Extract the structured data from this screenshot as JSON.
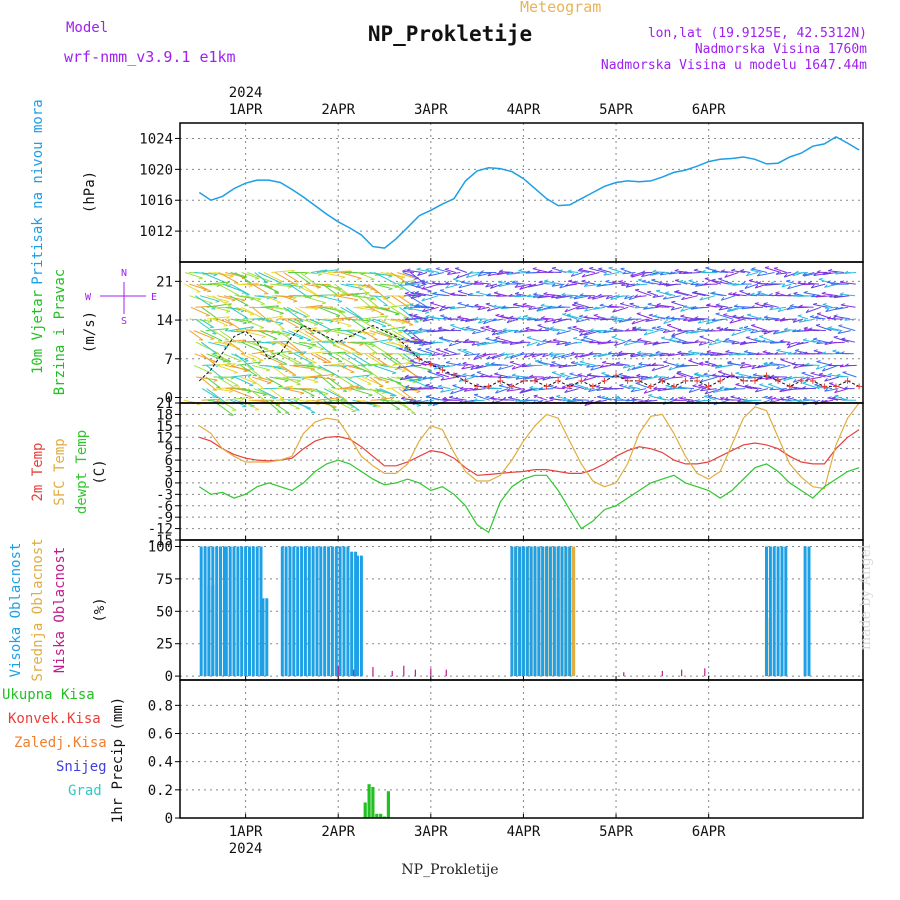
{
  "header": {
    "title": "NP_Prokletije",
    "subtitle": "Meteogram",
    "model_label": "Model",
    "model_value": "wrf-nmm_v3.9.1 e1km",
    "location": "lon,lat (19.9125E, 42.5312N)",
    "elevation": "Nadmorska Visina 1760m",
    "model_elevation": "Nadmorska Visina u modelu 1647.44m",
    "credit": "made by Angel",
    "footer": "NP_Prokletije"
  },
  "colors": {
    "pressure": "#1e9ee6",
    "temp2m": "#e8403c",
    "sfc_temp": "#e0ad40",
    "dewpt": "#2ec82e",
    "high_cloud": "#1ea0e6",
    "mid_cloud": "#e0ad40",
    "low_cloud": "#c01c8c",
    "total_precip": "#22c022",
    "conv_precip": "#e8403c",
    "frz_precip": "#f08030",
    "snow": "#4040e0",
    "hail": "#30c8c8",
    "wind_label": "#22c022",
    "cloud_mid_label": "#e0ad40",
    "compass": "#a020f0"
  },
  "chart_data": [
    {
      "type": "line",
      "panel": "pressure",
      "ylabel": [
        "Pritisak na nivou mora",
        "(hPa)"
      ],
      "ylim": [
        1008,
        1026
      ],
      "yticks": [
        1012,
        1016,
        1020,
        1024
      ],
      "top_axis": {
        "year": "2024",
        "date_labels": [
          "1APR",
          "2APR",
          "3APR",
          "4APR",
          "5APR",
          "6APR"
        ]
      },
      "x_hours": [
        0,
        3,
        6,
        9,
        12,
        15,
        18,
        21,
        24,
        27,
        30,
        33,
        36,
        39,
        42,
        45,
        48,
        51,
        54,
        57,
        60,
        63,
        66,
        69,
        72,
        75,
        78,
        81,
        84,
        87,
        90,
        93,
        96,
        99,
        102,
        105,
        108,
        111,
        114,
        117,
        120,
        123,
        126,
        129,
        132,
        135,
        138,
        141,
        144,
        147,
        150,
        153,
        156,
        159,
        162,
        165,
        168,
        171
      ],
      "values": [
        1017,
        1016,
        1016.5,
        1017.5,
        1018.2,
        1018.6,
        1018.6,
        1018.3,
        1017.4,
        1016.4,
        1015.3,
        1014.2,
        1013.2,
        1012.4,
        1011.5,
        1010,
        1009.8,
        1011,
        1012.5,
        1014,
        1014.7,
        1015.5,
        1016.2,
        1018.5,
        1019.8,
        1020.2,
        1020.1,
        1019.7,
        1018.8,
        1017.5,
        1016.2,
        1015.3,
        1015.4,
        1016.2,
        1017,
        1017.8,
        1018.3,
        1018.5,
        1018.4,
        1018.5,
        1019,
        1019.6,
        1019.9,
        1020.4,
        1021,
        1021.3,
        1021.4,
        1021.6,
        1021.3,
        1020.7,
        1020.8,
        1021.6,
        1022.1,
        1023,
        1023.3,
        1024.2,
        1023.4,
        1022.5
      ]
    },
    {
      "type": "line",
      "panel": "wind",
      "ylabel": [
        "10m Vjetar",
        "Brzina i Pravac",
        "(m/s)"
      ],
      "ylim": [
        -1,
        24.5
      ],
      "yticks": [
        0,
        7,
        14,
        21
      ],
      "compass": {
        "n": "N",
        "s": "S",
        "e": "E",
        "w": "W"
      },
      "note": "arrows show 10 m wind direction, colored by speed",
      "x_hours": [
        0,
        3,
        6,
        9,
        12,
        15,
        18,
        21,
        24,
        27,
        30,
        33,
        36,
        39,
        42,
        45,
        48,
        51,
        54,
        57,
        60,
        63,
        66,
        69,
        72,
        75,
        78,
        81,
        84,
        87,
        90,
        93,
        96,
        99,
        102,
        105,
        108,
        111,
        114,
        117,
        120,
        123,
        126,
        129,
        132,
        135,
        138,
        141,
        144,
        147,
        150,
        153,
        156,
        159,
        162,
        165,
        168,
        171
      ],
      "values": [
        3,
        5,
        8,
        11,
        12,
        10,
        7,
        8,
        11,
        13,
        12,
        11,
        10,
        11,
        12,
        13,
        12,
        11,
        9,
        7,
        6,
        5,
        4,
        3,
        2,
        2,
        3,
        2,
        3,
        3,
        2,
        3,
        2,
        3,
        2,
        3,
        4,
        3,
        3,
        2,
        3,
        2,
        3,
        3,
        2,
        3,
        4,
        3,
        3,
        4,
        3,
        2,
        3,
        3,
        2,
        2,
        3,
        2
      ]
    },
    {
      "type": "line",
      "panel": "temperature",
      "ylabel": [
        "2m Temp",
        "SFC Temp",
        "dewpt Temp",
        "(C)"
      ],
      "ylim": [
        -15,
        21
      ],
      "yticks": [
        -15,
        -12,
        -9,
        -6,
        -3,
        0,
        3,
        6,
        9,
        12,
        15,
        18,
        21
      ],
      "x_hours": [
        0,
        3,
        6,
        9,
        12,
        15,
        18,
        21,
        24,
        27,
        30,
        33,
        36,
        39,
        42,
        45,
        48,
        51,
        54,
        57,
        60,
        63,
        66,
        69,
        72,
        75,
        78,
        81,
        84,
        87,
        90,
        93,
        96,
        99,
        102,
        105,
        108,
        111,
        114,
        117,
        120,
        123,
        126,
        129,
        132,
        135,
        138,
        141,
        144,
        147,
        150,
        153,
        156,
        159,
        162,
        165,
        168,
        171
      ],
      "series": [
        {
          "name": "2m Temp",
          "values": [
            12,
            11,
            9,
            7.5,
            6.5,
            6,
            5.8,
            6,
            6.5,
            9,
            11,
            12,
            12.2,
            11.5,
            9.5,
            7,
            4.5,
            4.5,
            5.5,
            7,
            8.5,
            8,
            6.5,
            4,
            2,
            2.2,
            2.5,
            2.8,
            3,
            3.5,
            3.5,
            3,
            2.5,
            2.5,
            3.5,
            5,
            7,
            8.5,
            9.5,
            9,
            8,
            6,
            5,
            5,
            5.5,
            7,
            8.5,
            10,
            10.5,
            10,
            9,
            7,
            5.5,
            5,
            5,
            9,
            12,
            14
          ]
        },
        {
          "name": "SFC Temp",
          "values": [
            15,
            13,
            9,
            7,
            5.5,
            5.5,
            5.5,
            6,
            7,
            13,
            16,
            17,
            16.5,
            12,
            7,
            4.5,
            2.5,
            2.5,
            5,
            11,
            15,
            14,
            8,
            3,
            0.5,
            0.5,
            2,
            6,
            11,
            15,
            18,
            17,
            11,
            5,
            0.5,
            -1,
            0,
            5,
            13,
            17.5,
            18,
            13,
            7,
            2.5,
            1,
            3,
            10,
            17,
            20,
            19,
            12,
            5,
            1.5,
            -1,
            -1.5,
            10,
            17,
            21
          ]
        },
        {
          "name": "dewpt Temp",
          "values": [
            -1,
            -3,
            -2.5,
            -4,
            -3,
            -1,
            0,
            -1,
            -2,
            0,
            3,
            5,
            6,
            5,
            3,
            1,
            -0.5,
            0,
            1,
            0,
            -2,
            -1,
            -3,
            -6,
            -11,
            -13,
            -5,
            -1,
            1,
            2,
            2,
            -2,
            -7,
            -12,
            -10,
            -7,
            -6,
            -4,
            -2,
            0,
            1,
            2,
            0,
            -1,
            -2,
            -4,
            -2,
            1,
            4,
            5,
            3,
            0,
            -2,
            -4,
            -1,
            1,
            3,
            4
          ]
        }
      ]
    },
    {
      "type": "bar",
      "panel": "clouds",
      "ylabel": [
        "Visoka Oblacnost",
        "Srednja Oblacnost",
        "Niska Oblacnost",
        "(%)"
      ],
      "ylim": [
        -3,
        105
      ],
      "yticks": [
        0,
        25,
        50,
        75,
        100
      ],
      "series": [
        {
          "name": "Visoka Oblacnost",
          "segments": [
            {
              "from_h": 0.5,
              "to_h": 6.5,
              "value": 100
            },
            {
              "from_h": 2.5,
              "to_h": 3.5,
              "value": 70
            },
            {
              "from_h": 7,
              "to_h": 16,
              "value": 100
            },
            {
              "from_h": 16.5,
              "to_h": 17.5,
              "value": 60
            },
            {
              "from_h": 21.5,
              "to_h": 39,
              "value": 100
            },
            {
              "from_h": 39.5,
              "to_h": 40.5,
              "value": 96
            },
            {
              "from_h": 41,
              "to_h": 42,
              "value": 93
            },
            {
              "from_h": 81,
              "to_h": 96,
              "value": 100
            },
            {
              "from_h": 93,
              "to_h": 94.5,
              "value": 60
            },
            {
              "from_h": 147,
              "to_h": 152,
              "value": 100
            },
            {
              "from_h": 157,
              "to_h": 158,
              "value": 100
            }
          ]
        },
        {
          "name": "Srednja Oblacnost",
          "segments": [
            {
              "from_h": 82,
              "to_h": 97,
              "value": 100
            },
            {
              "from_h": 147,
              "to_h": 148,
              "value": 45
            }
          ]
        },
        {
          "name": "Niska Oblacnost",
          "spikes": [
            {
              "h": 36,
              "value": 8
            },
            {
              "h": 40,
              "value": 5
            },
            {
              "h": 45,
              "value": 7
            },
            {
              "h": 50,
              "value": 4
            },
            {
              "h": 53,
              "value": 8
            },
            {
              "h": 56,
              "value": 5
            },
            {
              "h": 60,
              "value": 6
            },
            {
              "h": 64,
              "value": 5
            },
            {
              "h": 110,
              "value": 3
            },
            {
              "h": 120,
              "value": 4
            },
            {
              "h": 125,
              "value": 5
            },
            {
              "h": 131,
              "value": 6
            }
          ]
        }
      ]
    },
    {
      "type": "bar",
      "panel": "precipitation",
      "ylabel": [
        "1hr Precip (mm)"
      ],
      "legend": [
        "Ukupna Kisa",
        "Konvek.Kisa",
        "Zaledj.Kisa",
        "Snijeg",
        "Grad"
      ],
      "ylim": [
        0,
        0.98
      ],
      "yticks": [
        0,
        0.2,
        0.4,
        0.6,
        0.8
      ],
      "bottom_axis": {
        "year": "2024",
        "date_labels": [
          "1APR",
          "2APR",
          "3APR",
          "4APR",
          "5APR",
          "6APR"
        ]
      },
      "series": [
        {
          "name": "Ukupna Kisa",
          "points": [
            {
              "h": 43,
              "value": 0.11
            },
            {
              "h": 44,
              "value": 0.24
            },
            {
              "h": 45,
              "value": 0.22
            },
            {
              "h": 46,
              "value": 0.03
            },
            {
              "h": 47,
              "value": 0.03
            },
            {
              "h": 48,
              "value": 0.01
            },
            {
              "h": 49,
              "value": 0.19
            }
          ]
        }
      ]
    }
  ]
}
